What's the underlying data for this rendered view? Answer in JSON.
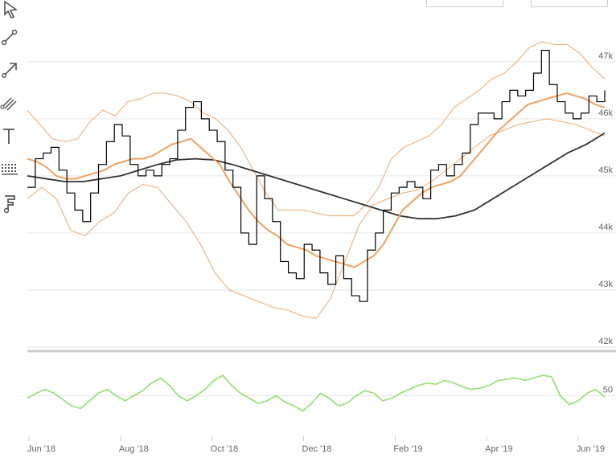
{
  "toolbar": {
    "items": [
      {
        "name": "pointer-tool-icon"
      },
      {
        "name": "line-segment-tool-icon"
      },
      {
        "name": "arrow-tool-icon"
      },
      {
        "name": "parallel-lines-tool-icon"
      },
      {
        "name": "text-tool-icon"
      },
      {
        "name": "fibonacci-tool-icon"
      },
      {
        "name": "flag-tool-icon"
      }
    ]
  },
  "colors": {
    "price": "#000000",
    "ma_short": "#f0a060",
    "bands": "#f0a060",
    "ma_long": "#333333",
    "oscillator": "#90e070",
    "grid": "#e6e6e6",
    "separator": "#cccccc"
  },
  "chart_data": [
    {
      "type": "line",
      "x_ticks": [
        "Jun '18",
        "Aug '18",
        "Oct '18",
        "Dec '18",
        "Feb '19",
        "Apr '19",
        "Jun '19"
      ],
      "y_ticks": [
        "42k",
        "43k",
        "44k",
        "45k",
        "46k",
        "47k"
      ],
      "ylim": [
        42000,
        47800
      ],
      "series": [
        {
          "role": "price",
          "values": [
            44800,
            45300,
            45400,
            45500,
            45100,
            44700,
            44400,
            44200,
            44700,
            45200,
            45600,
            45900,
            45700,
            45200,
            45000,
            45100,
            45000,
            45200,
            45300,
            45800,
            46200,
            46300,
            46000,
            45800,
            45600,
            45100,
            44800,
            44000,
            43800,
            45000,
            44600,
            44200,
            43500,
            43300,
            43200,
            43800,
            43700,
            43300,
            43100,
            43600,
            43200,
            42900,
            42800,
            43700,
            44000,
            44400,
            44700,
            44800,
            44900,
            44800,
            44600,
            45100,
            45200,
            45000,
            45200,
            45400,
            45900,
            46100,
            46100,
            46000,
            46300,
            46500,
            46400,
            46500,
            46800,
            47200,
            46600,
            46300,
            46100,
            46000,
            46100,
            46400,
            46300,
            46500
          ]
        },
        {
          "role": "ma_short",
          "values": [
            45300,
            45250,
            45150,
            45000,
            44950,
            44950,
            45000,
            45050,
            45100,
            45200,
            45250,
            45300,
            45300,
            45350,
            45450,
            45550,
            45600,
            45650,
            45500,
            45350,
            45200,
            44900,
            44650,
            44400,
            44200,
            44050,
            43950,
            43800,
            43750,
            43700,
            43600,
            43550,
            43500,
            43450,
            43400,
            43500,
            43600,
            43800,
            44100,
            44400,
            44550,
            44700,
            44800,
            44850,
            44900,
            45000,
            45200,
            45400,
            45600,
            45800,
            45950,
            46100,
            46250,
            46300,
            46350,
            46400,
            46450,
            46400,
            46350,
            46250,
            46200
          ]
        },
        {
          "role": "band_upper",
          "values": [
            46150,
            45900,
            45650,
            45600,
            45650,
            45950,
            46150,
            46050,
            46300,
            46350,
            46450,
            46450,
            46400,
            46300,
            46100,
            46000,
            45800,
            45500,
            45100,
            44700,
            44400,
            44400,
            44400,
            44350,
            44300,
            44300,
            44300,
            44500,
            44800,
            45300,
            45500,
            45600,
            45700,
            45900,
            46200,
            46350,
            46500,
            46700,
            46800,
            47000,
            47250,
            47350,
            47300,
            47300,
            47150,
            46900,
            46700
          ]
        },
        {
          "role": "band_lower",
          "values": [
            44600,
            44800,
            44600,
            44050,
            43950,
            44200,
            44350,
            44700,
            44850,
            44800,
            44500,
            44200,
            43800,
            43300,
            43000,
            42900,
            42800,
            42700,
            42650,
            42550,
            42500,
            42850,
            43500,
            44150,
            44500,
            44600,
            44700,
            44750,
            44900,
            45100,
            45300,
            45500,
            45700,
            45800,
            45900,
            45950,
            46000,
            45950,
            45900,
            45800,
            45700
          ]
        },
        {
          "role": "ma_long",
          "values": [
            45000,
            44950,
            44900,
            44900,
            44950,
            45000,
            45100,
            45200,
            45280,
            45300,
            45280,
            45200,
            45100,
            45000,
            44900,
            44800,
            44700,
            44600,
            44500,
            44400,
            44300,
            44250,
            44250,
            44300,
            44400,
            44600,
            44800,
            45000,
            45200,
            45400,
            45550,
            45750
          ]
        }
      ]
    },
    {
      "type": "line",
      "y_ticks": [
        "50"
      ],
      "series": [
        {
          "role": "oscillator",
          "values": [
            48,
            52,
            55,
            52,
            47,
            42,
            40,
            46,
            52,
            55,
            50,
            46,
            50,
            54,
            60,
            64,
            58,
            50,
            46,
            50,
            55,
            62,
            66,
            58,
            52,
            48,
            44,
            46,
            50,
            45,
            42,
            38,
            44,
            52,
            48,
            42,
            44,
            50,
            54,
            52,
            46,
            48,
            52,
            55,
            58,
            60,
            59,
            62,
            60,
            57,
            55,
            56,
            58,
            62,
            63,
            64,
            62,
            64,
            66,
            65,
            50,
            43,
            46,
            52,
            55,
            49
          ]
        }
      ]
    }
  ]
}
